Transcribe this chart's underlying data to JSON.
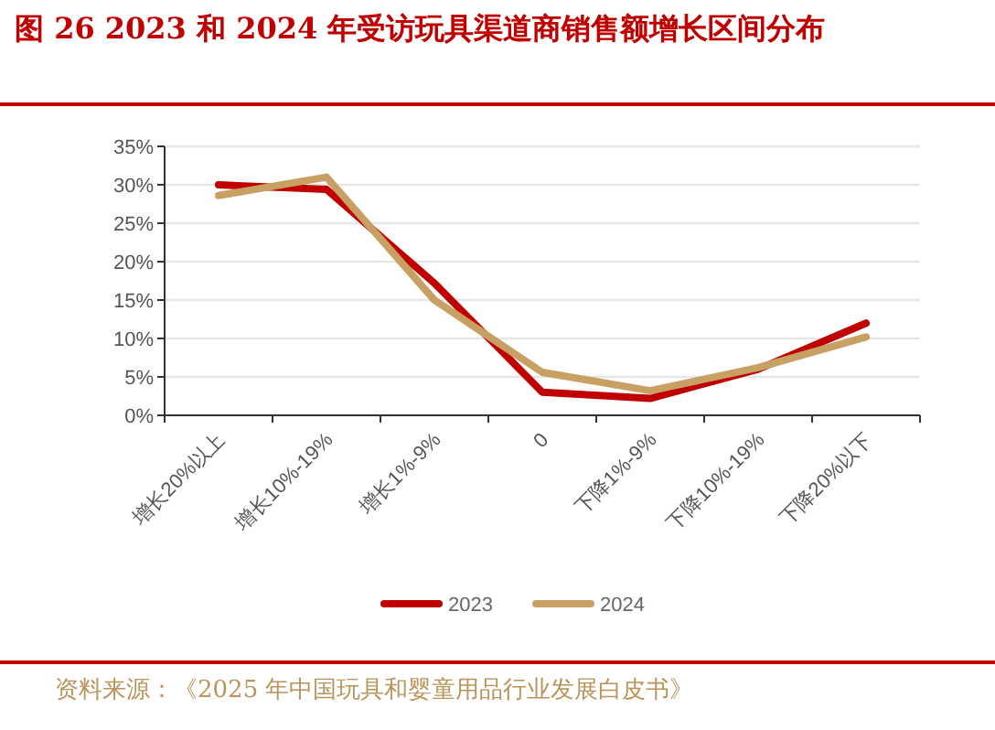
{
  "chart_data": {
    "type": "line",
    "title": "图 26   2023 和 2024 年受访玩具渠道商销售额增长区间分布",
    "categories": [
      "增长20%以上",
      "增长10%-19%",
      "增长1%-9%",
      "0",
      "下降1%-9%",
      "下降10%-19%",
      "下降20%以下"
    ],
    "series": [
      {
        "name": "2023",
        "color": "#c00000",
        "values": [
          30.0,
          29.4,
          17.2,
          3.0,
          2.2,
          6.0,
          12.0
        ]
      },
      {
        "name": "2024",
        "color": "#c8a064",
        "values": [
          28.6,
          31.0,
          15.0,
          5.6,
          3.2,
          6.2,
          10.2
        ]
      }
    ],
    "ylim": [
      0,
      35
    ],
    "yticks": [
      {
        "value": 0,
        "label": "0%"
      },
      {
        "value": 5,
        "label": "5%"
      },
      {
        "value": 10,
        "label": "10%"
      },
      {
        "value": 15,
        "label": "15%"
      },
      {
        "value": 20,
        "label": "20%"
      },
      {
        "value": 25,
        "label": "25%"
      },
      {
        "value": 30,
        "label": "30%"
      },
      {
        "value": 35,
        "label": "35%"
      }
    ],
    "grid": "y",
    "legend": "bottom",
    "annotations": [
      "资料来源：《2025 年中国玩具和婴童用品行业发展白皮书》"
    ]
  }
}
